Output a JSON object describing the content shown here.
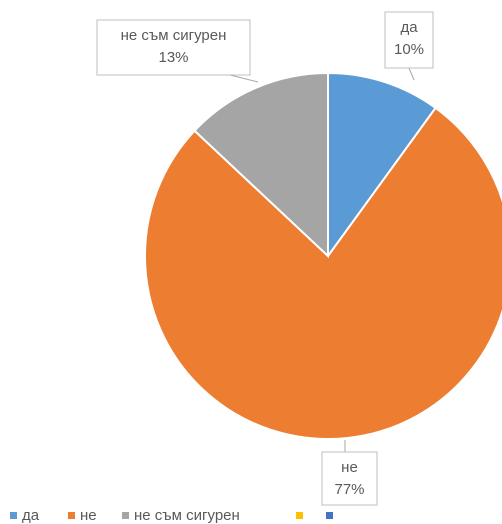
{
  "chart_data": {
    "type": "pie",
    "categories": [
      "да",
      "не",
      "не съм сигурен",
      null,
      null
    ],
    "values": [
      10,
      77,
      13,
      null,
      null
    ],
    "value_labels": [
      "10%",
      "77%",
      "13%",
      null,
      null
    ],
    "colors": [
      "#5b9bd5",
      "#ed7d31",
      "#a5a5a5",
      "#ffc000",
      "#4472c4"
    ],
    "legend": "bottom"
  }
}
